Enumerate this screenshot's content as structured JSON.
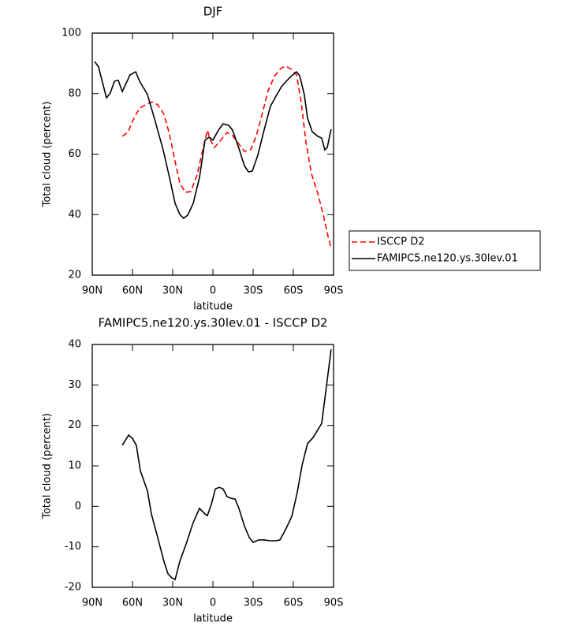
{
  "chart_data": [
    {
      "type": "line",
      "title": "DJF",
      "xlabel": "latitude",
      "ylabel": "Total cloud (percent)",
      "xlim": [
        90,
        -90
      ],
      "xticks": [
        {
          "value": 90,
          "label": "90N"
        },
        {
          "value": 60,
          "label": "60N"
        },
        {
          "value": 30,
          "label": "30N"
        },
        0,
        {
          "value": -30,
          "label": "30S"
        },
        {
          "value": -60,
          "label": "60S"
        },
        {
          "value": -90,
          "label": "90S"
        }
      ],
      "ylim": [
        20,
        100
      ],
      "yticks": [
        20,
        40,
        60,
        80,
        100
      ],
      "legend": "outside right",
      "series": [
        {
          "name": "ISCCP D2",
          "color": "#ff0000",
          "line_style": "dashed",
          "x": [
            67.6,
            63.5,
            58.8,
            54.7,
            50.0,
            45.3,
            41.2,
            36.5,
            32.4,
            28.2,
            24.7,
            20.6,
            16.5,
            11.8,
            7.6,
            4.1,
            1.8,
            -1.2,
            -5.9,
            -10.6,
            -14.7,
            -19.4,
            -23.5,
            -28.2,
            -32.4,
            -37.1,
            -41.2,
            -45.9,
            -50.6,
            -54.1,
            -58.8,
            -62.4,
            -65.9,
            -69.4,
            -73.5,
            -78.2,
            -82.4,
            -85.9,
            -88.2
          ],
          "values": [
            65.9,
            67.2,
            71.9,
            75.2,
            76.3,
            77.3,
            76.3,
            73.2,
            66.6,
            57.5,
            50.5,
            47.4,
            47.6,
            53.1,
            61.4,
            67.9,
            64.6,
            62.2,
            64.6,
            67.2,
            66.1,
            63.3,
            60.9,
            61.4,
            66.1,
            73.9,
            81.0,
            85.7,
            88.3,
            89.1,
            88.0,
            86.2,
            77.1,
            64.0,
            53.6,
            47.1,
            39.8,
            32.8,
            28.9
          ]
        },
        {
          "name": "FAMIPC5.ne120.ys.30lev.01",
          "color": "#000000",
          "line_style": "solid",
          "x": [
            88.2,
            85.3,
            79.4,
            76.5,
            73.5,
            70.6,
            67.6,
            61.8,
            57.6,
            54.7,
            48.8,
            42.9,
            37.1,
            32.4,
            28.2,
            24.7,
            21.8,
            18.8,
            14.7,
            10.0,
            5.9,
            2.9,
            0,
            -4.1,
            -7.6,
            -11.8,
            -14.7,
            -19.4,
            -23.5,
            -26.5,
            -29.4,
            -33.5,
            -38.2,
            -42.9,
            -47.1,
            -51.2,
            -54.7,
            -58.8,
            -62.4,
            -64.7,
            -68.2,
            -70.6,
            -74.1,
            -78.2,
            -81.2,
            -83.5,
            -85.3,
            -88.2
          ],
          "values": [
            90.6,
            88.8,
            78.6,
            80.2,
            84.1,
            84.4,
            80.7,
            86.2,
            87.2,
            84.1,
            79.7,
            70.6,
            61.4,
            52.3,
            43.7,
            40.1,
            38.8,
            39.8,
            43.7,
            52.3,
            64.6,
            65.6,
            64.6,
            67.9,
            70.0,
            69.5,
            67.9,
            61.9,
            56.2,
            54.1,
            54.4,
            59.6,
            67.9,
            75.8,
            79.2,
            82.3,
            84.1,
            85.9,
            87.2,
            85.9,
            79.7,
            71.9,
            67.4,
            65.9,
            65.3,
            61.4,
            62.2,
            68.2
          ]
        }
      ]
    },
    {
      "type": "line",
      "title": "FAMIPC5.ne120.ys.30lev.01 - ISCCP D2",
      "xlabel": "latitude",
      "ylabel": "Total cloud (percent)",
      "xlim": [
        90,
        -90
      ],
      "xticks": [
        {
          "value": 90,
          "label": "90N"
        },
        {
          "value": 60,
          "label": "60N"
        },
        {
          "value": 30,
          "label": "30N"
        },
        0,
        {
          "value": -30,
          "label": "30S"
        },
        {
          "value": -60,
          "label": "60S"
        },
        {
          "value": -90,
          "label": "90S"
        }
      ],
      "ylim": [
        -20,
        40
      ],
      "yticks": [
        -20,
        -10,
        0,
        10,
        20,
        30,
        40
      ],
      "color": "#000000",
      "x": [
        67.6,
        62.9,
        60.0,
        57.1,
        54.1,
        48.8,
        45.9,
        41.2,
        36.5,
        33.5,
        30.6,
        28.2,
        24.7,
        20.0,
        14.7,
        10.0,
        5.9,
        4.1,
        1.2,
        -1.8,
        -4.7,
        -7.6,
        -10.6,
        -13.5,
        -16.5,
        -19.4,
        -23.5,
        -27.1,
        -30.0,
        -34.1,
        -38.2,
        -42.9,
        -47.1,
        -50.0,
        -54.1,
        -58.8,
        -62.9,
        -66.5,
        -70.6,
        -74.7,
        -81.2,
        -88.2
      ],
      "values": [
        15.1,
        17.6,
        16.8,
        15.1,
        8.8,
        3.8,
        -1.9,
        -7.7,
        -13.6,
        -16.7,
        -17.7,
        -18.1,
        -13.6,
        -9.3,
        -4.0,
        -0.5,
        -1.9,
        -2.3,
        0.5,
        4.3,
        4.7,
        4.3,
        2.4,
        2.0,
        1.8,
        -0.5,
        -4.8,
        -7.7,
        -8.9,
        -8.3,
        -8.3,
        -8.5,
        -8.5,
        -8.3,
        -5.8,
        -2.5,
        3.4,
        10.2,
        15.5,
        17.0,
        20.5,
        38.8
      ]
    }
  ]
}
